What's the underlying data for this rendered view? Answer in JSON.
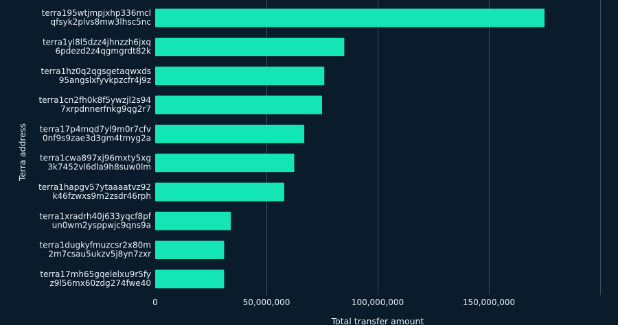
{
  "chart_data": {
    "type": "bar",
    "orientation": "horizontal",
    "xlabel": "Total transfer amount",
    "ylabel": "Terra address",
    "xlim": [
      0,
      200000000
    ],
    "grid": true,
    "bar_color": "#13e5b4",
    "background_color": "#0a1c2c",
    "x_ticks": [
      {
        "value": 0,
        "label": "0"
      },
      {
        "value": 50000000,
        "label": "50,000,000"
      },
      {
        "value": 100000000,
        "label": "100,000,000"
      },
      {
        "value": 150000000,
        "label": "150,000,000"
      }
    ],
    "categories": [
      {
        "line1": "terra195wtjmpjxhp336mcl",
        "line2": "qfsyk2plvs8mw3lhsc5nc"
      },
      {
        "line1": "terra1yl8l5dzz4jhnzzh6jxq",
        "line2": "6pdezd2z4qgmgrdt82k"
      },
      {
        "line1": "terra1hz0q2qgsgetaqwxds",
        "line2": "95angslxfyvkpzcfr4j9z"
      },
      {
        "line1": "terra1cn2fh0k8f5ywzjl2s94",
        "line2": "7xrpdnnerfnkg9qg2r7"
      },
      {
        "line1": "terra17p4mqd7yl9m0r7cfv",
        "line2": "0nf9s9zae3d3gm4tmyg2a"
      },
      {
        "line1": "terra1cwa897xj96mxty5xg",
        "line2": "3k7452vl6dla9h8suw0lm"
      },
      {
        "line1": "terra1hapgv57ytaaaatvz92",
        "line2": "k46fzwxs9m2zsdr46rph"
      },
      {
        "line1": "terra1xradrh40j633yqcf8pf",
        "line2": "un0wm2ysppwjc9qns9a"
      },
      {
        "line1": "terra1dugkyfmuzcsr2x80m",
        "line2": "2m7csau5ukzv5j8yn7zxr"
      },
      {
        "line1": "terra17mh65gqelelxu9r5fy",
        "line2": "z9l56mx60zdg274fwe40"
      }
    ],
    "values": [
      175000000,
      85000000,
      76000000,
      75000000,
      67000000,
      62500000,
      58000000,
      34000000,
      31000000,
      31000000
    ]
  }
}
